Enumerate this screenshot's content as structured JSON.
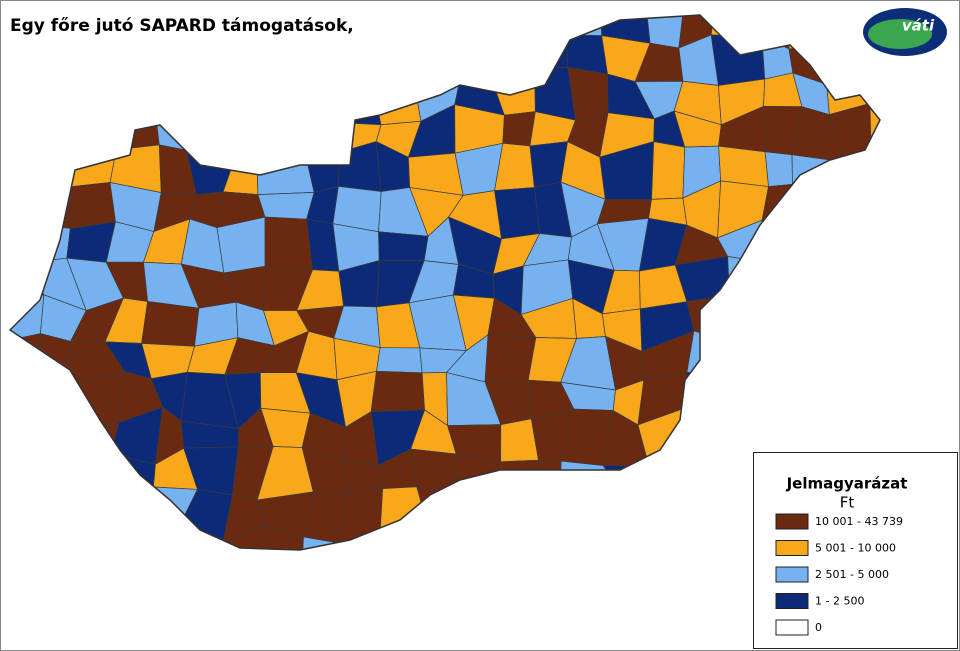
{
  "header": {
    "title": "Egy főre jutó SAPARD támogatások,",
    "logo": "váti"
  },
  "legend": {
    "title": "Jelmagyarázat",
    "unit": "Ft",
    "items": [
      {
        "label": "10 001 - 43 739",
        "color": "#6b2a10"
      },
      {
        "label": "5 001 - 10 000",
        "color": "#f9a81c"
      },
      {
        "label": "2 501 - 5 000",
        "color": "#77b2f0"
      },
      {
        "label": "1 - 2 500",
        "color": "#0d2a78"
      },
      {
        "label": "0",
        "color": "#ffffff"
      }
    ]
  }
}
